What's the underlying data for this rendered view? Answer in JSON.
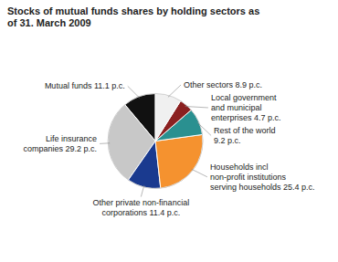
{
  "chart_data": {
    "type": "pie",
    "title": "Stocks of mutual funds shares by holding sectors as\nof 31. March 2009",
    "categories": [
      "Mutual funds 11.1 p.c.",
      "Life insurance\ncompanies 29.2 p.c.",
      "Other private non-financial\ncorporations 11.4 p.c.",
      "Households incl\nnon-profit institutions\nserving households 25.4 p.c.",
      "Rest of the world\n9.2 p.c.",
      "Local government\nand municipal\nenterprises 4.7 p.c.",
      "Other sectors 8.9 p.c."
    ],
    "values": [
      11.1,
      29.2,
      11.4,
      25.4,
      9.2,
      4.7,
      8.9
    ],
    "colors": [
      "#111111",
      "#c8c8c8",
      "#1a3a8f",
      "#f5922f",
      "#2a9090",
      "#8b2020",
      "#f0f0f0"
    ]
  }
}
